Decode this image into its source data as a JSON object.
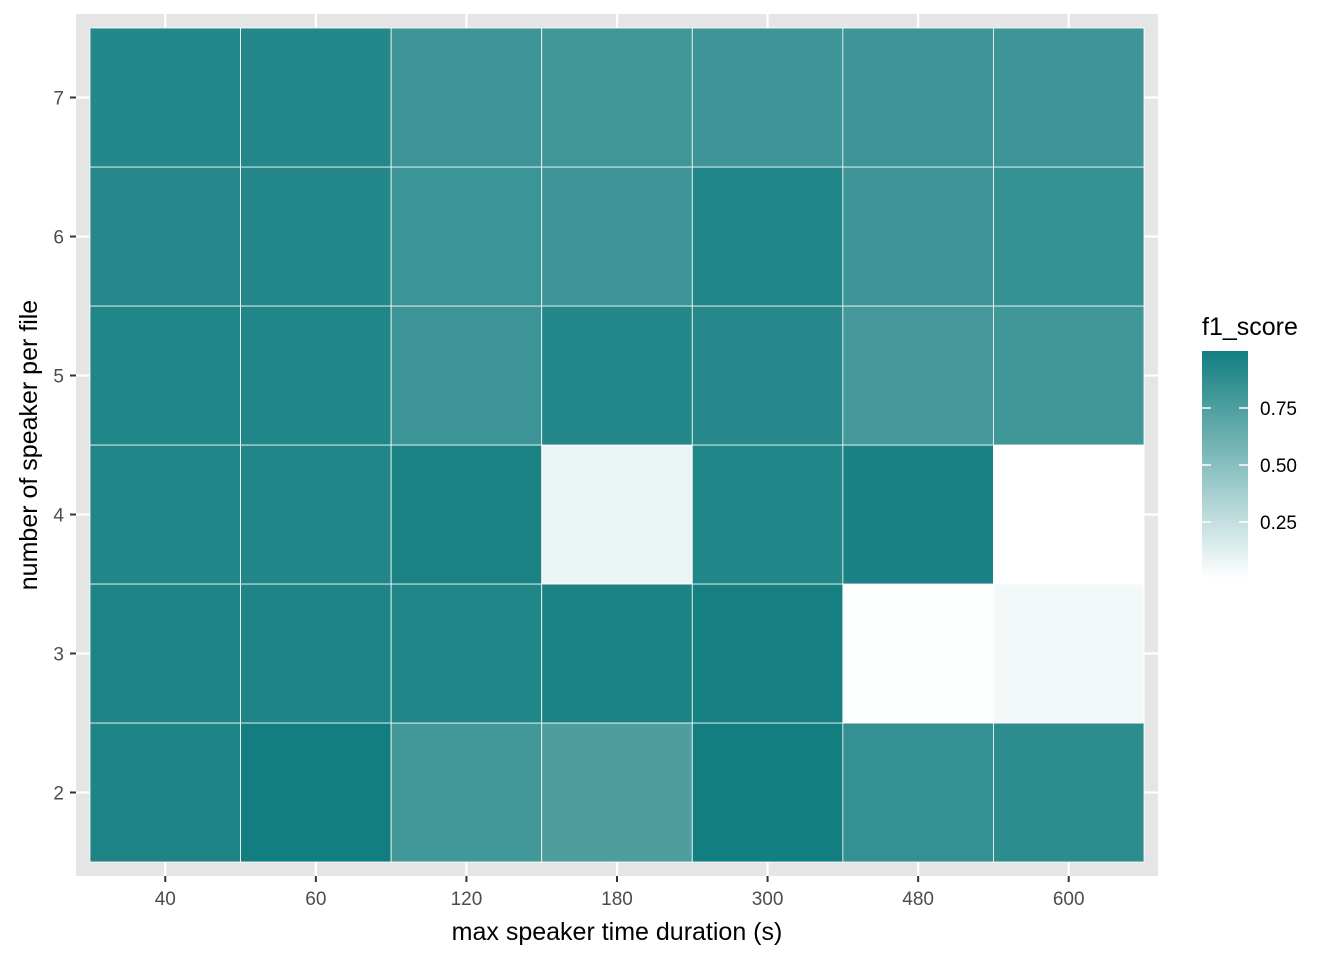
{
  "chart_data": {
    "type": "heatmap",
    "xlabel": "max speaker time duration (s)",
    "ylabel": "number of speaker per file",
    "x_categories": [
      "40",
      "60",
      "120",
      "180",
      "300",
      "480",
      "600"
    ],
    "y_categories": [
      "2",
      "3",
      "4",
      "5",
      "6",
      "7"
    ],
    "values": [
      [
        0.95,
        1.0,
        0.8,
        0.75,
        1.0,
        0.86,
        0.89
      ],
      [
        0.95,
        0.95,
        0.94,
        0.96,
        0.99,
        0.01,
        0.05
      ],
      [
        0.94,
        0.94,
        0.96,
        0.08,
        0.94,
        0.97,
        0.0
      ],
      [
        0.94,
        0.94,
        0.82,
        0.93,
        0.92,
        0.79,
        0.81
      ],
      [
        0.92,
        0.93,
        0.83,
        0.82,
        0.94,
        0.82,
        0.85
      ],
      [
        0.93,
        0.93,
        0.82,
        0.81,
        0.82,
        0.82,
        0.82
      ]
    ],
    "legend": {
      "title": "f1_score",
      "breaks": [
        "0.25",
        "0.50",
        "0.75"
      ],
      "break_values": [
        0.25,
        0.5,
        0.75
      ],
      "range": [
        0.0,
        1.0
      ],
      "low_color": "#ffffff",
      "high_color": "#137e80",
      "placement": "right"
    },
    "panel_background": "#e5e5e5",
    "grid": true
  }
}
